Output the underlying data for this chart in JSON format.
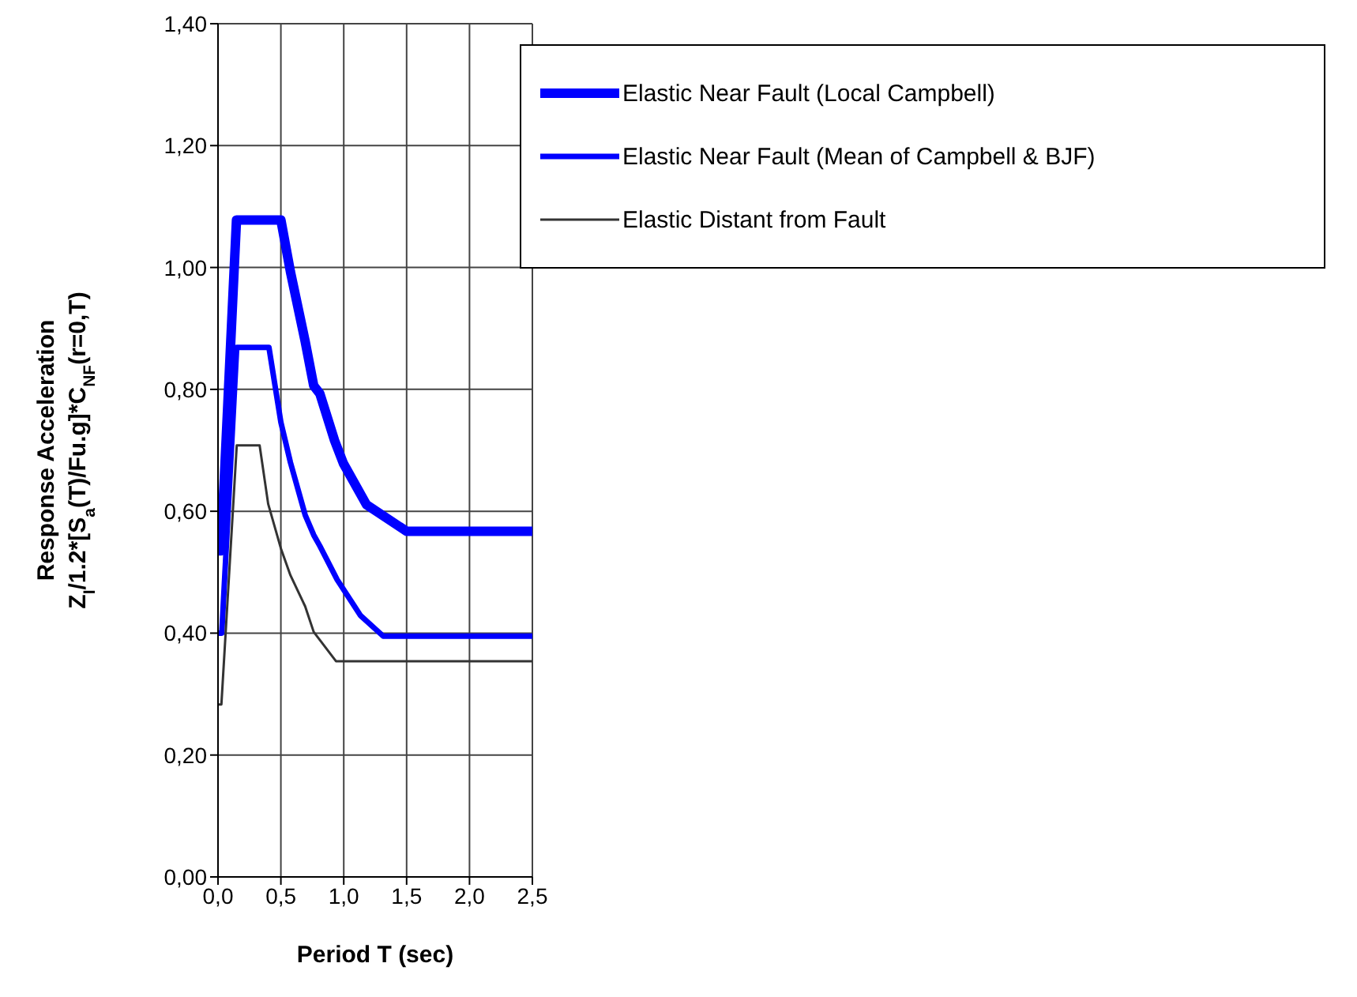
{
  "chart_data": {
    "type": "line",
    "xlabel": "Period T (sec)",
    "ylabel": "Response Acceleration\nZ$_{I}$/1.2*[S$_{a}$(T)/Fu.g]*C$_{NF}$(r=0,T)",
    "xlim": [
      0,
      2.5
    ],
    "ylim": [
      0,
      1.4
    ],
    "xticks": [
      {
        "value": 0,
        "label": "0,0"
      },
      {
        "value": 0.5,
        "label": "0,5"
      },
      {
        "value": 1,
        "label": "1,0"
      },
      {
        "value": 1.5,
        "label": "1,5"
      },
      {
        "value": 2,
        "label": "2,0"
      },
      {
        "value": 2.5,
        "label": "2,5"
      }
    ],
    "yticks": [
      {
        "value": 0,
        "label": "0,00"
      },
      {
        "value": 0.2,
        "label": "0,20"
      },
      {
        "value": 0.4,
        "label": "0,40"
      },
      {
        "value": 0.6,
        "label": "0,60"
      },
      {
        "value": 0.8,
        "label": "0,80"
      },
      {
        "value": 1,
        "label": "1,00"
      },
      {
        "value": 1.2,
        "label": "1,20"
      },
      {
        "value": 1.4,
        "label": "1,40"
      }
    ],
    "grid": true,
    "legend": "top right",
    "marker": "none",
    "line_style": "solid",
    "series": [
      {
        "name": "Elastic Near Fault (Local Campbell)",
        "color": "#0000ff",
        "x": [
          0,
          0.023,
          0.147,
          0.5,
          0.576,
          0.693,
          0.761,
          0.81,
          0.927,
          0.996,
          1.18,
          1.5,
          2.5
        ],
        "values": [
          0.535,
          0.535,
          1.078,
          1.078,
          0.993,
          0.879,
          0.806,
          0.793,
          0.716,
          0.679,
          0.611,
          0.567,
          0.567
        ]
      },
      {
        "name": "Elastic Near Fault (Mean of Campbell & BJF)",
        "color": "#0000ff",
        "x": [
          0,
          0.03,
          0.149,
          0.405,
          0.5,
          0.576,
          0.693,
          0.761,
          0.81,
          0.927,
          0.947,
          1.133,
          1.314,
          2.5
        ],
        "values": [
          0.4,
          0.4,
          0.869,
          0.869,
          0.746,
          0.68,
          0.594,
          0.561,
          0.543,
          0.496,
          0.488,
          0.429,
          0.395,
          0.395
        ]
      },
      {
        "name": "Elastic Distant from Fault",
        "color": "#333333",
        "x": [
          0,
          0.027,
          0.149,
          0.331,
          0.399,
          0.5,
          0.576,
          0.693,
          0.761,
          0.938,
          2.5
        ],
        "values": [
          0.283,
          0.283,
          0.708,
          0.708,
          0.612,
          0.539,
          0.495,
          0.444,
          0.402,
          0.354,
          0.354
        ]
      }
    ]
  }
}
